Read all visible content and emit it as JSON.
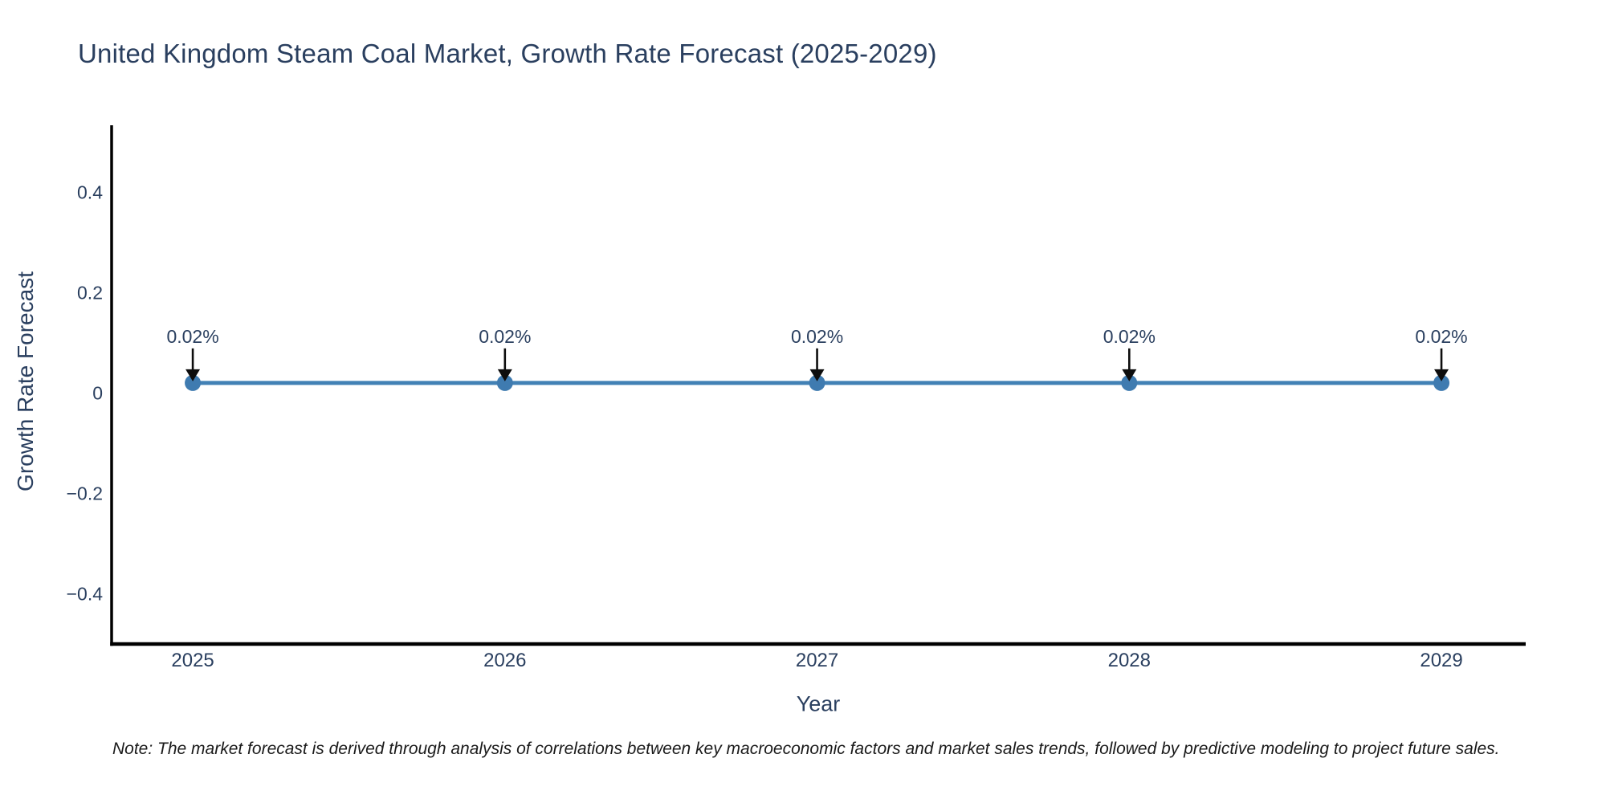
{
  "title": "United Kingdom Steam Coal Market, Growth Rate Forecast (2025-2029)",
  "note": "Note: The market forecast is derived through analysis of correlations between key macroeconomic factors and market sales trends, followed by predictive modeling to project future sales.",
  "colors": {
    "title_text": "#2a3f5f",
    "tick_text": "#2a3f5f",
    "annotation_text": "#2a3f5f",
    "line": "#4281b5",
    "marker": "#3f7bb0",
    "arrow": "#0d0d0d",
    "axis": "#000000",
    "note_text": "#1a1a1a",
    "background": "#ffffff"
  },
  "chart_data": {
    "type": "line",
    "title": "United Kingdom Steam Coal Market, Growth Rate Forecast (2025-2029)",
    "xlabel": "Year",
    "ylabel": "Growth Rate Forecast",
    "x": [
      2025,
      2026,
      2027,
      2028,
      2029
    ],
    "xtick_labels": [
      "2025",
      "2026",
      "2027",
      "2028",
      "2029"
    ],
    "values": [
      0.02,
      0.02,
      0.02,
      0.02,
      0.02
    ],
    "point_labels": [
      "0.02%",
      "0.02%",
      "0.02%",
      "0.02%",
      "0.02%"
    ],
    "yticks": [
      {
        "v": 0.4,
        "label": "0.4"
      },
      {
        "v": 0.2,
        "label": "0.2"
      },
      {
        "v": 0,
        "label": "0"
      },
      {
        "v": -0.2,
        "label": "−0.2"
      },
      {
        "v": -0.4,
        "label": "−0.4"
      }
    ],
    "xlim": [
      2024.74,
      2029.27
    ],
    "ylim": [
      -0.5,
      0.53
    ],
    "grid": false,
    "legend": false,
    "annotation_style": "black-arrow-down-to-point"
  }
}
